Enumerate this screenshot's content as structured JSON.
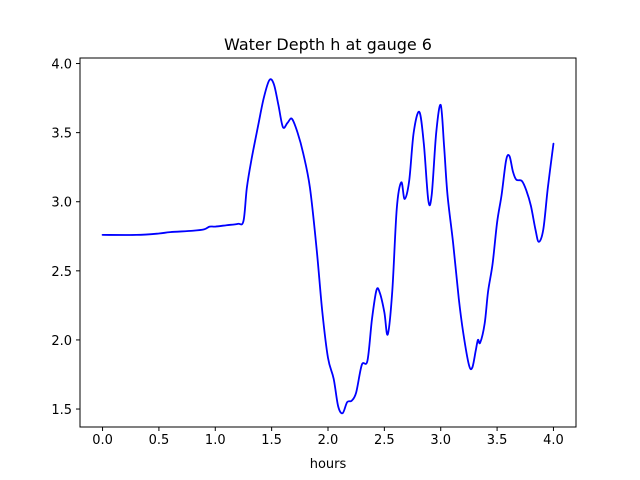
{
  "chart_data": {
    "type": "line",
    "title": "Water Depth h at gauge 6",
    "xlabel": "hours",
    "ylabel": "",
    "xlim": [
      -0.2,
      4.2
    ],
    "ylim": [
      1.37,
      4.04
    ],
    "grid": false,
    "legend": "none",
    "xticks": [
      0.0,
      0.5,
      1.0,
      1.5,
      2.0,
      2.5,
      3.0,
      3.5,
      4.0
    ],
    "xtick_labels": [
      "0.0",
      "0.5",
      "1.0",
      "1.5",
      "2.0",
      "2.5",
      "3.0",
      "3.5",
      "4.0"
    ],
    "yticks": [
      1.5,
      2.0,
      2.5,
      3.0,
      3.5,
      4.0
    ],
    "ytick_labels": [
      "1.5",
      "2.0",
      "2.5",
      "3.0",
      "3.5",
      "4.0"
    ],
    "series": [
      {
        "color": "#0000ff",
        "x": [
          0.0,
          0.3,
          0.5,
          0.6,
          0.8,
          0.9,
          0.95,
          1.0,
          1.1,
          1.2,
          1.25,
          1.28,
          1.32,
          1.38,
          1.43,
          1.48,
          1.52,
          1.56,
          1.6,
          1.64,
          1.68,
          1.73,
          1.78,
          1.84,
          1.9,
          1.95,
          2.0,
          2.05,
          2.09,
          2.13,
          2.17,
          2.21,
          2.25,
          2.3,
          2.35,
          2.39,
          2.43,
          2.46,
          2.5,
          2.53,
          2.57,
          2.61,
          2.65,
          2.68,
          2.72,
          2.76,
          2.81,
          2.85,
          2.89,
          2.92,
          2.96,
          3.0,
          3.03,
          3.06,
          3.11,
          3.16,
          3.2,
          3.25,
          3.28,
          3.31,
          3.33,
          3.35,
          3.39,
          3.42,
          3.46,
          3.5,
          3.54,
          3.58,
          3.61,
          3.64,
          3.67,
          3.72,
          3.76,
          3.8,
          3.84,
          3.87,
          3.91,
          3.95,
          4.0
        ],
        "y": [
          2.76,
          2.76,
          2.77,
          2.78,
          2.79,
          2.8,
          2.82,
          2.82,
          2.83,
          2.84,
          2.86,
          3.1,
          3.3,
          3.55,
          3.75,
          3.88,
          3.85,
          3.7,
          3.54,
          3.57,
          3.6,
          3.5,
          3.35,
          3.1,
          2.65,
          2.2,
          1.87,
          1.72,
          1.52,
          1.47,
          1.55,
          1.56,
          1.62,
          1.82,
          1.85,
          2.15,
          2.36,
          2.34,
          2.2,
          2.04,
          2.35,
          2.95,
          3.14,
          3.02,
          3.15,
          3.5,
          3.65,
          3.42,
          3.01,
          3.05,
          3.5,
          3.7,
          3.4,
          3.05,
          2.7,
          2.3,
          2.05,
          1.82,
          1.8,
          1.92,
          2.0,
          1.98,
          2.12,
          2.35,
          2.55,
          2.85,
          3.05,
          3.3,
          3.33,
          3.22,
          3.16,
          3.15,
          3.08,
          2.97,
          2.8,
          2.71,
          2.8,
          3.1,
          3.42
        ]
      }
    ]
  }
}
